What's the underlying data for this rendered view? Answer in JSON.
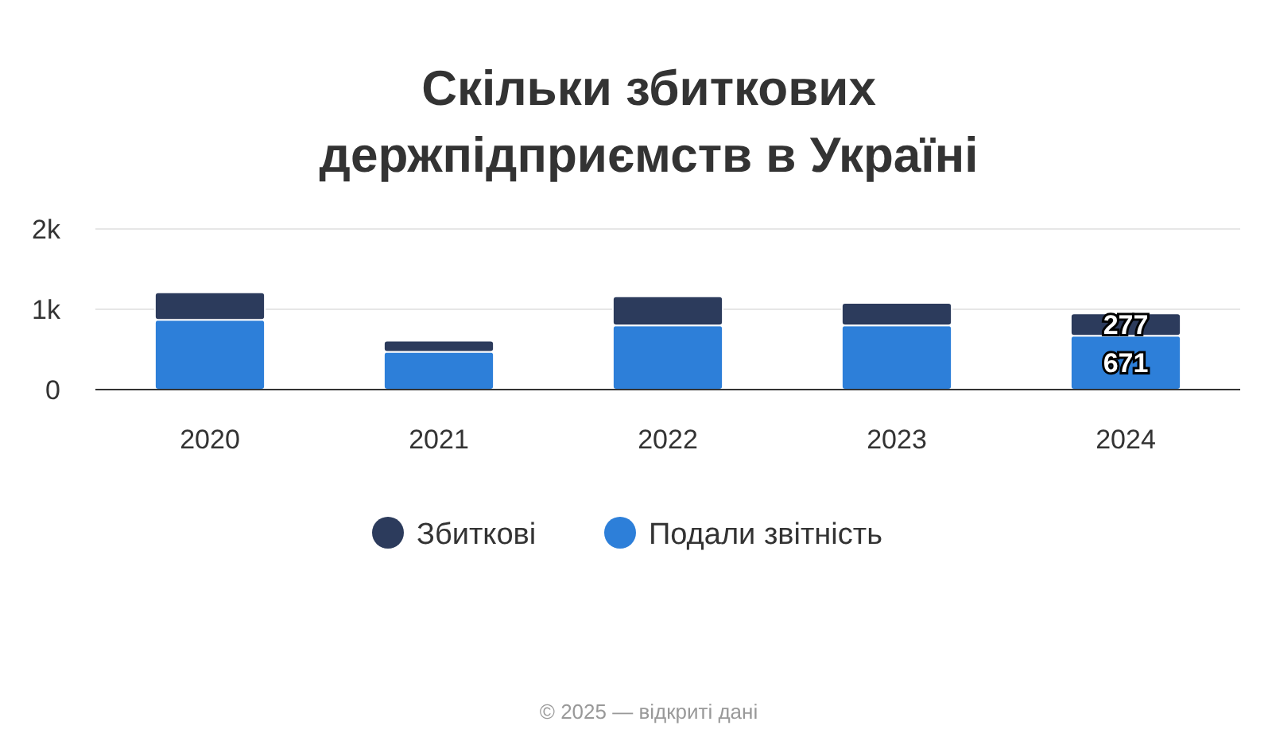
{
  "chart_data": {
    "type": "bar",
    "title": "Скільки збиткових держпідприємств в Україні",
    "categories": [
      "2020",
      "2021",
      "2022",
      "2023",
      "2024"
    ],
    "stacked": true,
    "series": [
      {
        "name": "Подали звітність",
        "color": "#2d7fd9",
        "values": [
          870,
          470,
          800,
          800,
          671
        ],
        "value_labels": [
          null,
          null,
          null,
          null,
          "671"
        ]
      },
      {
        "name": "Збиткові",
        "color": "#2c3b5c",
        "values": [
          340,
          140,
          360,
          280,
          277
        ],
        "value_labels": [
          null,
          null,
          null,
          null,
          "277"
        ]
      }
    ],
    "ylim": [
      0,
      2000
    ],
    "yticks": [
      0,
      {
        "value": 1000,
        "label": "1k"
      },
      {
        "value": 2000,
        "label": "2k"
      }
    ],
    "grid": "y",
    "legend": "bottom",
    "annotations": [
      "© 2025 — відкриті дані"
    ]
  }
}
